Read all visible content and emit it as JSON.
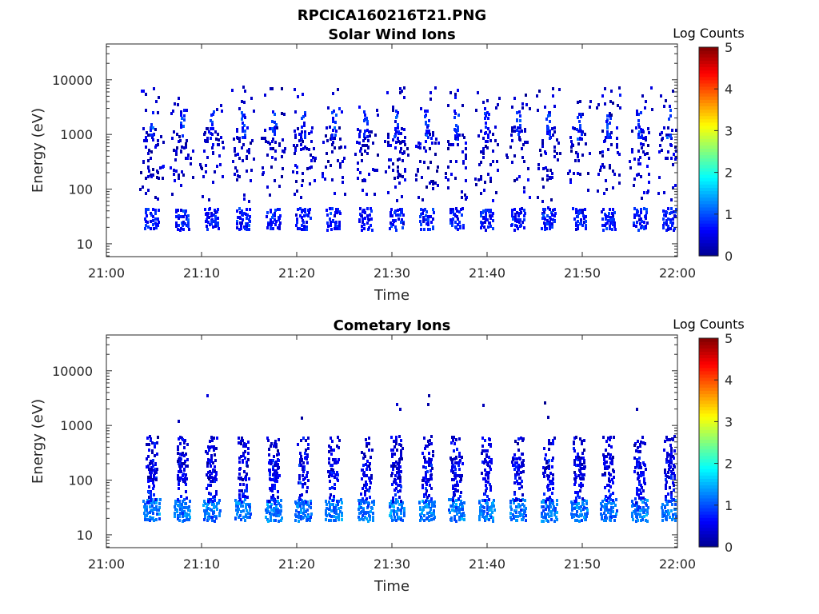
{
  "figure_title": "RPCICA160216T21.PNG",
  "colors": {
    "axis": "#262626",
    "grid": "none",
    "colormap": [
      "#00008f",
      "#0000ff",
      "#0080ff",
      "#00ffff",
      "#80ff80",
      "#ffff00",
      "#ff8000",
      "#ff0000",
      "#800000"
    ]
  },
  "chart_data": [
    {
      "type": "heatmap",
      "title": "Solar Wind Ions",
      "xlabel": "Time",
      "ylabel": "Energy (eV)",
      "y_scale": "log",
      "xlim": [
        "21:00",
        "22:00"
      ],
      "x_ticks": [
        "21:00",
        "21:10",
        "21:20",
        "21:30",
        "21:40",
        "21:50",
        "22:00"
      ],
      "y_ticks": [
        "10",
        "100",
        "1000",
        "10000"
      ],
      "colorbar": {
        "title": "Log Counts",
        "range": [
          0,
          5
        ],
        "ticks": [
          "0",
          "1",
          "2",
          "3",
          "4",
          "5"
        ]
      },
      "sweep_minutes": [
        4.8,
        8.0,
        11.1,
        14.4,
        17.6,
        20.7,
        23.9,
        27.3,
        30.5,
        33.7,
        36.8,
        40.0,
        43.3,
        46.5,
        49.7,
        52.8,
        56.1,
        59.2
      ],
      "bands": [
        {
          "energy_eV": 28,
          "log_counts": 0.7,
          "density": 0.75,
          "width_min": 1.6
        },
        {
          "energy_eV": 750,
          "log_counts": 0.3,
          "density": 0.22,
          "width_min": 2.0
        },
        {
          "energy_eV": 1500,
          "log_counts": 0.8,
          "density": 0.65,
          "width_min": 0.5
        },
        {
          "energy_eV": 350,
          "log_counts": 0.3,
          "density": 0.1,
          "width_min": 2.4
        },
        {
          "energy_eV": 150,
          "log_counts": 0.3,
          "density": 0.07,
          "width_min": 2.4
        },
        {
          "energy_eV": 4000,
          "log_counts": 0.3,
          "density": 0.07,
          "width_min": 2.6
        }
      ]
    },
    {
      "type": "heatmap",
      "title": "Cometary Ions",
      "xlabel": "Time",
      "ylabel": "Energy (eV)",
      "y_scale": "log",
      "xlim": [
        "21:00",
        "22:00"
      ],
      "x_ticks": [
        "21:00",
        "21:10",
        "21:20",
        "21:30",
        "21:40",
        "21:50",
        "22:00"
      ],
      "y_ticks": [
        "10",
        "100",
        "1000",
        "10000"
      ],
      "colorbar": {
        "title": "Log Counts",
        "range": [
          0,
          5
        ],
        "ticks": [
          "0",
          "1",
          "2",
          "3",
          "4",
          "5"
        ]
      },
      "sweep_minutes": [
        4.8,
        8.0,
        11.1,
        14.4,
        17.6,
        20.7,
        23.9,
        27.3,
        30.5,
        33.7,
        36.8,
        40.0,
        43.3,
        46.5,
        49.7,
        52.8,
        56.1,
        59.2
      ],
      "bands": [
        {
          "energy_eV": 28,
          "log_counts": 1.2,
          "density": 0.92,
          "width_min": 1.7
        },
        {
          "energy_eV": 100,
          "log_counts": 0.6,
          "density": 0.55,
          "width_min": 1.0
        },
        {
          "energy_eV": 250,
          "log_counts": 0.4,
          "density": 0.4,
          "width_min": 1.2
        },
        {
          "energy_eV": 2000,
          "log_counts": 0.2,
          "density": 0.01,
          "width_min": 1.0
        }
      ]
    }
  ]
}
